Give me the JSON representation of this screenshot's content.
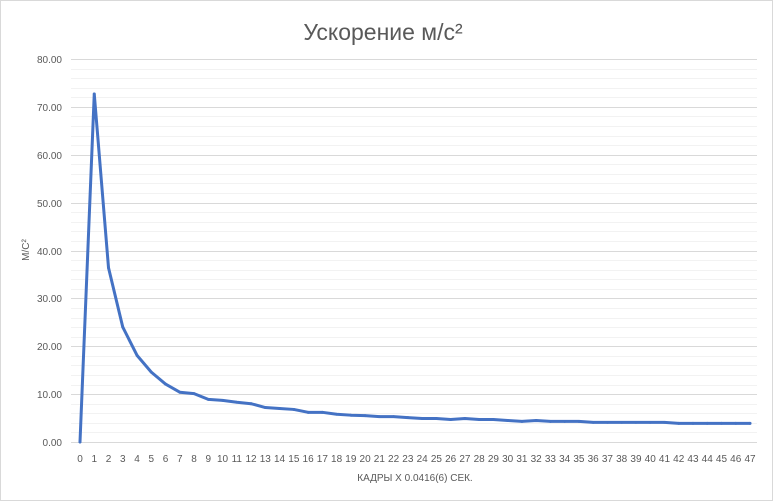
{
  "chart_data": {
    "type": "line",
    "title": "Ускорение м/с²",
    "xlabel": "КАДРЫ X 0.0416(6) СЕК.",
    "ylabel": "М/С²",
    "categories": [
      "0",
      "1",
      "2",
      "3",
      "4",
      "5",
      "6",
      "7",
      "8",
      "9",
      "10",
      "11",
      "12",
      "13",
      "14",
      "15",
      "16",
      "17",
      "18",
      "19",
      "20",
      "21",
      "22",
      "23",
      "24",
      "25",
      "26",
      "27",
      "28",
      "29",
      "30",
      "31",
      "32",
      "33",
      "34",
      "35",
      "36",
      "37",
      "38",
      "39",
      "40",
      "41",
      "42",
      "43",
      "44",
      "45",
      "46",
      "47"
    ],
    "series": [
      {
        "color": "#4472C4",
        "values": [
          0,
          72.7,
          36.4,
          24.0,
          18.1,
          14.6,
          12.1,
          10.4,
          10.1,
          8.9,
          8.7,
          8.3,
          8.0,
          7.2,
          7.0,
          6.8,
          6.2,
          6.2,
          5.8,
          5.6,
          5.5,
          5.3,
          5.3,
          5.1,
          4.9,
          4.9,
          4.7,
          4.9,
          4.7,
          4.7,
          4.5,
          4.3,
          4.5,
          4.3,
          4.3,
          4.3,
          4.1,
          4.1,
          4.1,
          4.1,
          4.1,
          4.1,
          3.9,
          3.9,
          3.9,
          3.9,
          3.9,
          3.9
        ]
      }
    ],
    "ylim": [
      0,
      80
    ],
    "ytick_labels": [
      "0.00",
      "10.00",
      "20.00",
      "30.00",
      "40.00",
      "50.00",
      "60.00",
      "70.00",
      "80.00"
    ],
    "grid": {
      "major": true,
      "minor": true
    },
    "legend": "none"
  }
}
